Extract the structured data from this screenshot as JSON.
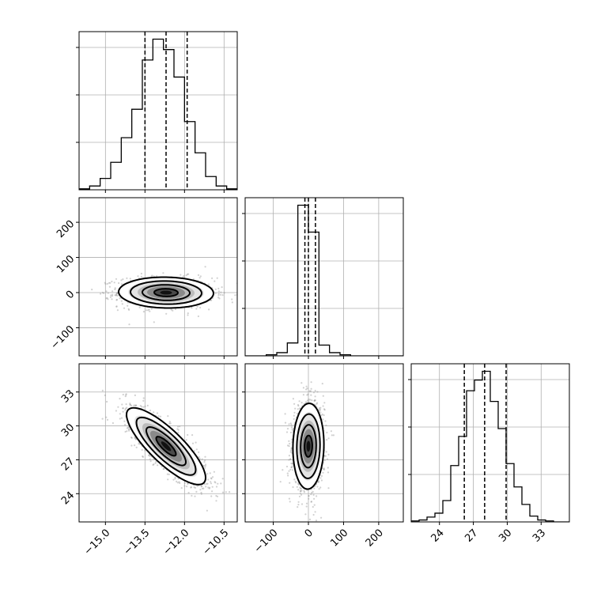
{
  "chart_data": {
    "type": "corner",
    "grid": true,
    "colors": {
      "hist": "#000000",
      "scatter": "#9a9a9a",
      "grid": "#b0b0b0",
      "frame": "#000000"
    },
    "parameters": [
      {
        "range": [
          -16.0,
          -10.0
        ],
        "ticks": [
          -15.0,
          -13.5,
          -12.0,
          -10.5
        ],
        "tick_labels": [
          "−15.0",
          "−13.5",
          "−12.0",
          "−10.5"
        ],
        "center": -12.7
      },
      {
        "range": [
          -180,
          270
        ],
        "ticks": [
          -100,
          0,
          100,
          200
        ],
        "tick_labels": [
          "−100",
          "0",
          "100",
          "200"
        ],
        "center": 0
      },
      {
        "range": [
          21.5,
          35.5
        ],
        "ticks": [
          24,
          27,
          30,
          33
        ],
        "tick_labels": [
          "24",
          "27",
          "30",
          "33"
        ],
        "center": 28.2
      }
    ],
    "diagonal": [
      {
        "quantiles": [
          -13.5,
          -12.7,
          -11.9
        ],
        "bin_edges": [
          -16.0,
          -15.6,
          -15.2,
          -14.8,
          -14.4,
          -14.0,
          -13.6,
          -13.2,
          -12.8,
          -12.4,
          -12.0,
          -11.6,
          -11.2,
          -10.8,
          -10.4,
          -10.0
        ],
        "counts": [
          1,
          4,
          12,
          29,
          55,
          85,
          137,
          159,
          148,
          119,
          72,
          39,
          14,
          4,
          1
        ]
      },
      {
        "quantiles": [
          -10,
          0,
          20
        ],
        "bin_edges": [
          -180,
          -150,
          -120,
          -90,
          -60,
          -30,
          0,
          30,
          60,
          90,
          120,
          150,
          180,
          210,
          240,
          270
        ],
        "counts": [
          0,
          0,
          1,
          3,
          12,
          140,
          115,
          10,
          3,
          1,
          0,
          0,
          0,
          0,
          0
        ]
      },
      {
        "quantiles": [
          26.2,
          28.0,
          29.9
        ],
        "bin_edges": [
          21.5,
          22.2,
          22.9,
          23.6,
          24.3,
          25.0,
          25.7,
          26.4,
          27.1,
          27.8,
          28.5,
          29.2,
          29.9,
          30.6,
          31.3,
          32.0,
          32.7,
          33.4,
          34.1,
          34.8,
          35.5
        ],
        "counts": [
          1,
          2,
          5,
          9,
          22,
          58,
          88,
          135,
          146,
          155,
          124,
          96,
          60,
          36,
          18,
          6,
          2,
          1,
          0,
          0
        ]
      }
    ],
    "pairs": [
      {
        "x_param": 0,
        "y_param": 1,
        "mean": [
          -12.7,
          0
        ],
        "sd": [
          0.9,
          22
        ],
        "corr": -0.05,
        "points": 1200
      },
      {
        "x_param": 0,
        "y_param": 2,
        "mean": [
          -12.7,
          28.2
        ],
        "sd": [
          0.75,
          1.7
        ],
        "corr": -0.82,
        "points": 1400
      },
      {
        "x_param": 1,
        "y_param": 2,
        "mean": [
          0,
          28.2
        ],
        "sd": [
          22,
          1.9
        ],
        "corr": 0.05,
        "points": 1400
      }
    ]
  }
}
